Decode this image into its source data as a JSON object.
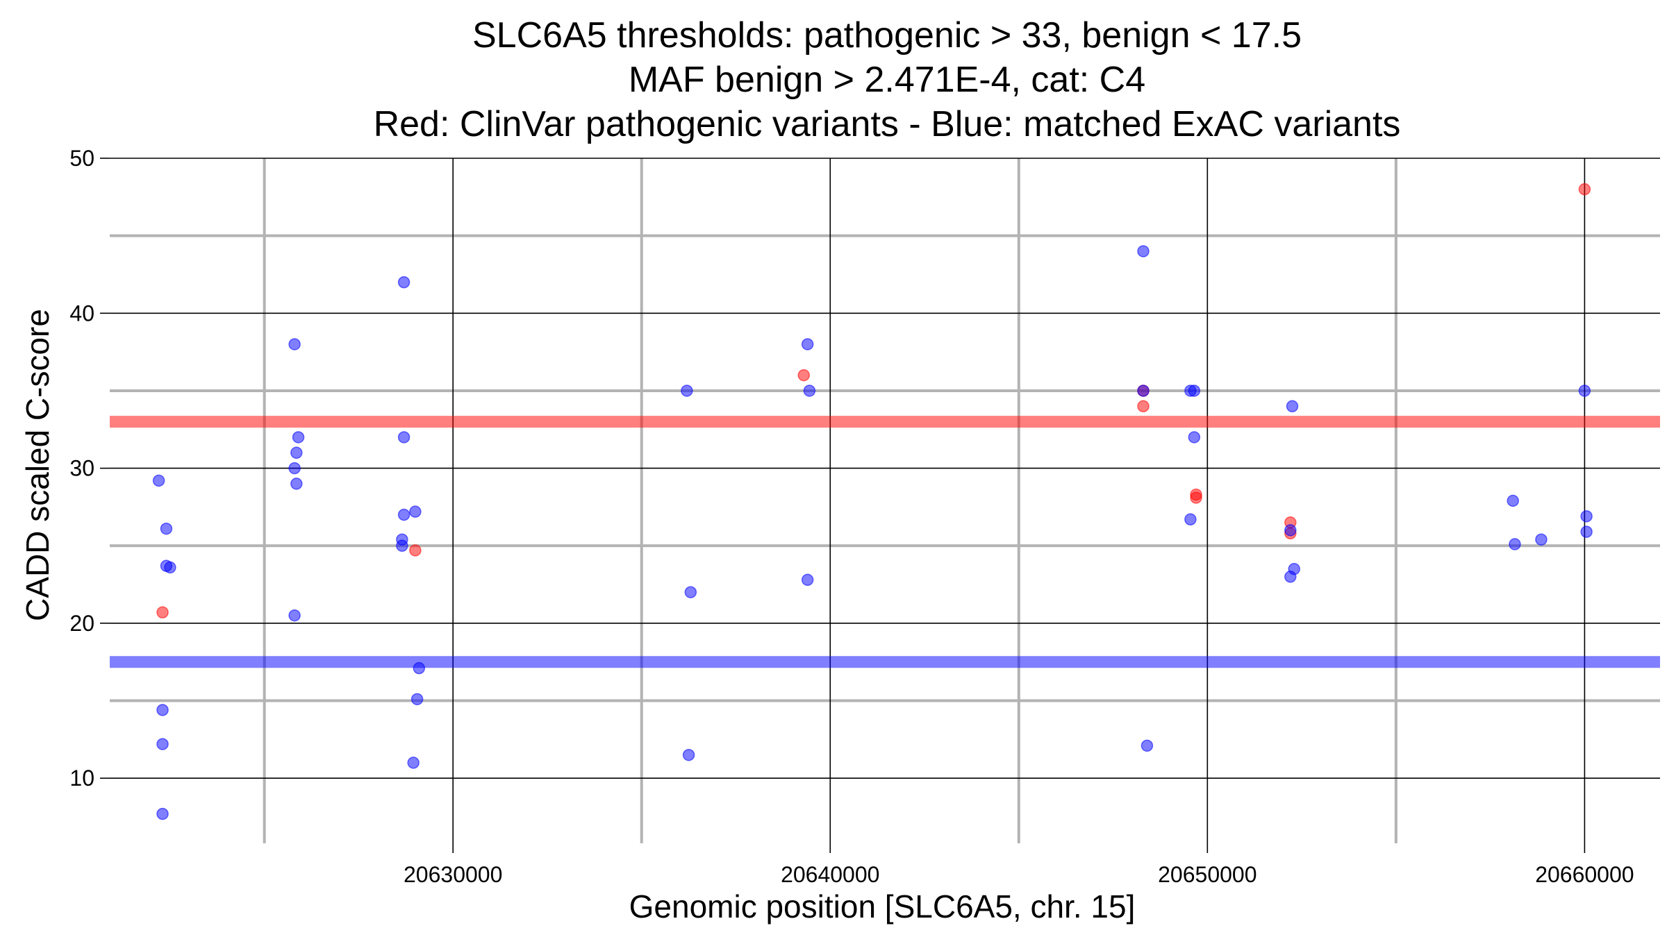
{
  "chart_data": {
    "type": "scatter",
    "title_lines": [
      "SLC6A5 thresholds: pathogenic > 33, benign < 17.5",
      "MAF benign > 2.471E-4, cat: C4",
      "Red: ClinVar pathogenic variants - Blue: matched ExAC variants"
    ],
    "xlabel": "Genomic position [SLC6A5, chr. 15]",
    "ylabel": "CADD scaled C-score",
    "xlim": [
      20620900,
      20662000
    ],
    "ylim": [
      5.8,
      50
    ],
    "x_major_ticks": [
      20630000,
      20640000,
      20650000,
      20660000
    ],
    "x_tick_labels": [
      "20630000",
      "20640000",
      "20650000",
      "20660000"
    ],
    "x_minor_grid": [
      20625000,
      20635000,
      20645000,
      20655000
    ],
    "y_major_ticks": [
      10,
      20,
      30,
      40,
      50
    ],
    "y_tick_labels": [
      "10",
      "20",
      "30",
      "40",
      "50"
    ],
    "y_minor_grid": [
      15,
      25,
      35,
      45
    ],
    "thresholds": [
      {
        "name": "pathogenic",
        "value": 33,
        "color": "#ff0000"
      },
      {
        "name": "benign",
        "value": 17.5,
        "color": "#0000ff"
      }
    ],
    "colors": {
      "pathogenic": "#ff0000",
      "benign": "#0000ff",
      "grid_major": "#000000",
      "grid_minor": "#b3b3b3"
    },
    "series": [
      {
        "name": "ClinVar pathogenic variants",
        "color": "#ff0000",
        "points": [
          [
            20622300,
            20.7
          ],
          [
            20629000,
            24.7
          ],
          [
            20639300,
            36.0
          ],
          [
            20648300,
            35.0
          ],
          [
            20648300,
            34.0
          ],
          [
            20649700,
            28.3
          ],
          [
            20649700,
            28.1
          ],
          [
            20652200,
            26.5
          ],
          [
            20652200,
            25.8
          ],
          [
            20660000,
            48.0
          ]
        ]
      },
      {
        "name": "matched ExAC variants",
        "color": "#0000ff",
        "points": [
          [
            20622200,
            29.2
          ],
          [
            20622400,
            26.1
          ],
          [
            20622400,
            23.7
          ],
          [
            20622500,
            23.6
          ],
          [
            20622300,
            14.4
          ],
          [
            20622300,
            12.2
          ],
          [
            20622300,
            7.7
          ],
          [
            20625800,
            38.0
          ],
          [
            20625900,
            32.0
          ],
          [
            20625850,
            31.0
          ],
          [
            20625800,
            30.0
          ],
          [
            20625850,
            29.0
          ],
          [
            20625800,
            20.5
          ],
          [
            20628700,
            42.0
          ],
          [
            20628700,
            32.0
          ],
          [
            20628700,
            27.0
          ],
          [
            20628650,
            25.4
          ],
          [
            20628650,
            25.0
          ],
          [
            20629000,
            27.2
          ],
          [
            20629100,
            17.1
          ],
          [
            20629050,
            15.1
          ],
          [
            20628950,
            11.0
          ],
          [
            20636200,
            35.0
          ],
          [
            20636300,
            22.0
          ],
          [
            20636250,
            11.5
          ],
          [
            20639400,
            38.0
          ],
          [
            20639450,
            35.0
          ],
          [
            20639400,
            22.8
          ],
          [
            20648300,
            44.0
          ],
          [
            20648300,
            35.0
          ],
          [
            20648400,
            12.1
          ],
          [
            20649550,
            35.0
          ],
          [
            20649650,
            35.0
          ],
          [
            20649650,
            32.0
          ],
          [
            20649550,
            26.7
          ],
          [
            20652250,
            34.0
          ],
          [
            20652200,
            26.0
          ],
          [
            20652300,
            23.5
          ],
          [
            20652200,
            23.0
          ],
          [
            20658100,
            27.9
          ],
          [
            20658150,
            25.1
          ],
          [
            20658850,
            25.4
          ],
          [
            20660000,
            35.0
          ],
          [
            20660050,
            26.9
          ],
          [
            20660050,
            25.9
          ]
        ]
      }
    ]
  }
}
